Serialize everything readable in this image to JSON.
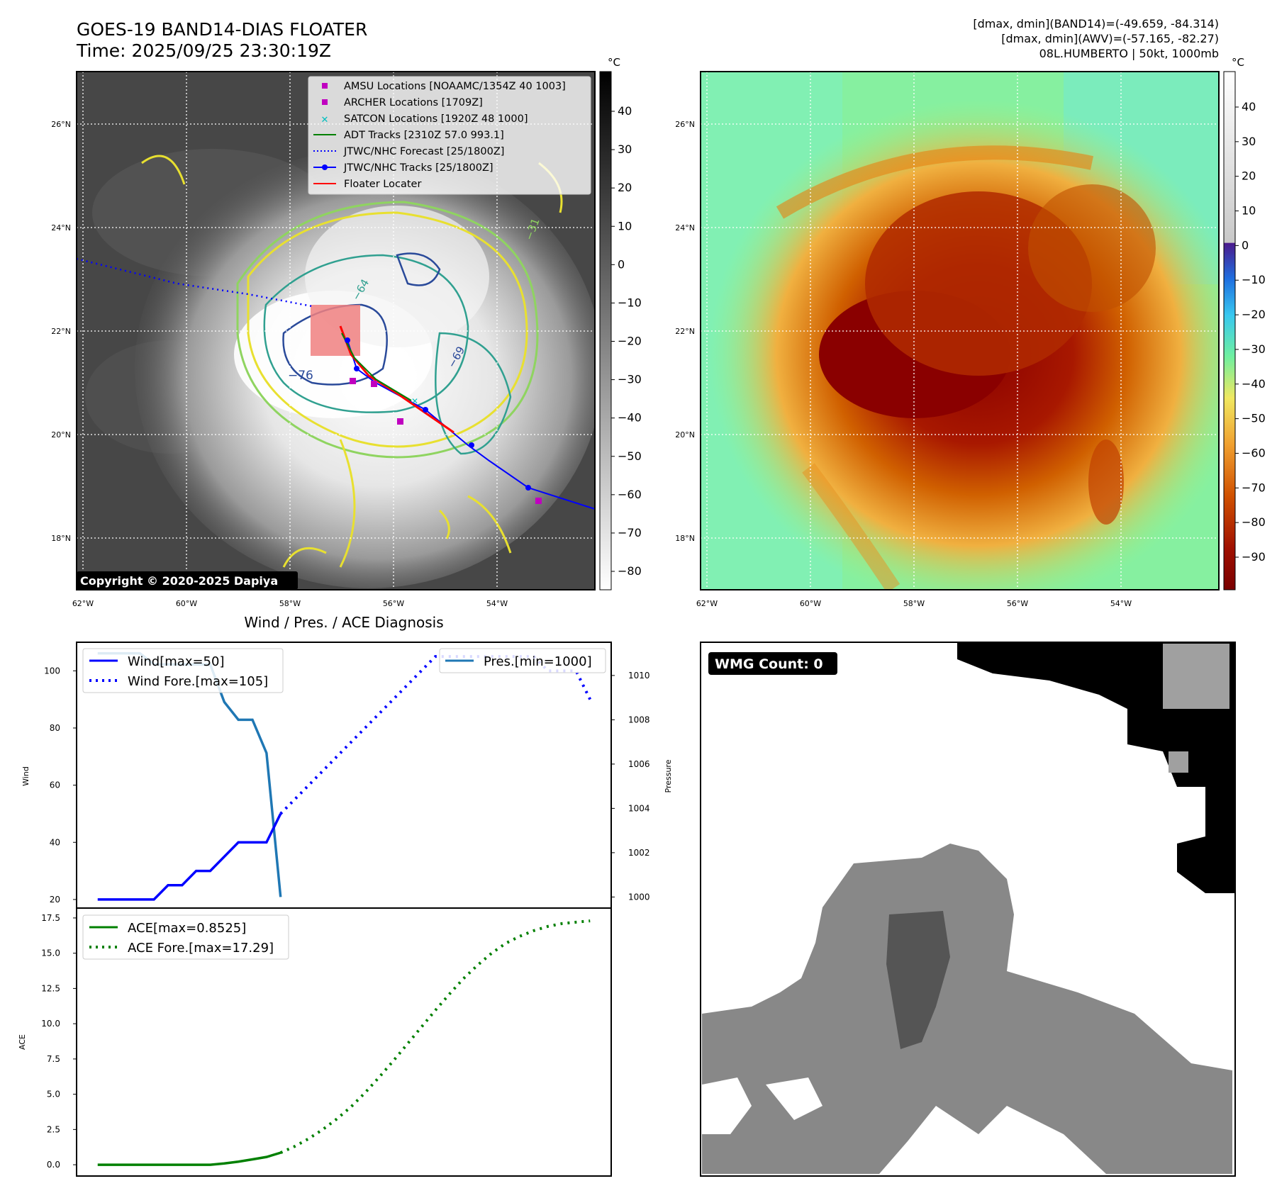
{
  "header": {
    "title": "GOES-19 BAND14-DIAS FLOATER",
    "time": "Time: 2025/09/25 23:30:19Z",
    "info_line1": "[dmax, dmin](BAND14)=(-49.659, -84.314)",
    "info_line2": "[dmax, dmin](AWV)=(-57.165, -82.27)",
    "info_line3": "08L.HUMBERTO | 50kt, 1000mb"
  },
  "copyright": "Copyright © 2020-2025 Dapiya",
  "colorbar_left": {
    "unit": "°C",
    "ticks": [
      "40",
      "30",
      "20",
      "10",
      "0",
      "−10",
      "−20",
      "−30",
      "−40",
      "−50",
      "−60",
      "−70",
      "−80"
    ]
  },
  "colorbar_right": {
    "unit": "°C",
    "ticks": [
      "40",
      "30",
      "20",
      "10",
      "0",
      "−10",
      "−20",
      "−30",
      "−40",
      "−50",
      "−60",
      "−70",
      "−80",
      "−90"
    ]
  },
  "map": {
    "lat_labels": [
      "26°N",
      "24°N",
      "22°N",
      "20°N",
      "18°N"
    ],
    "lon_labels": [
      "62°W",
      "60°W",
      "58°W",
      "56°W",
      "54°W"
    ],
    "contour_labels": [
      "−76",
      "−31",
      "−64",
      "−69"
    ],
    "legend": [
      {
        "label": "AMSU Locations [NOAAMC/1354Z 40 1003]",
        "icon": "square-marker",
        "color": "#c000c0"
      },
      {
        "label": "ARCHER Locations [1709Z]",
        "icon": "square-marker",
        "color": "#c000c0"
      },
      {
        "label": "SATCON Locations [1920Z 48 1000]",
        "icon": "x-marker",
        "color": "#00bfbf"
      },
      {
        "label": "ADT Tracks [2310Z 57.0 993.1]",
        "icon": "solid-line",
        "color": "#008000"
      },
      {
        "label": "JTWC/NHC Forecast [25/1800Z]",
        "icon": "dotted-line",
        "color": "#0000ff"
      },
      {
        "label": "JTWC/NHC Tracks [25/1800Z]",
        "icon": "line-dot",
        "color": "#0000ff"
      },
      {
        "label": "Floater Locater",
        "icon": "solid-line",
        "color": "#ff0000"
      }
    ]
  },
  "diagnosis": {
    "title": "Wind / Pres. / ACE Diagnosis",
    "wind_axis_label": "Wind",
    "pressure_axis_label": "Pressure",
    "ace_axis_label": "ACE",
    "wind_ticks": [
      "100",
      "80",
      "60",
      "40",
      "20"
    ],
    "pressure_ticks": [
      "1010",
      "1008",
      "1006",
      "1004",
      "1002",
      "1000"
    ],
    "ace_ticks": [
      "17.5",
      "15.0",
      "12.5",
      "10.0",
      "7.5",
      "5.0",
      "2.5",
      "0.0"
    ],
    "legend_wind": "Wind[max=50]",
    "legend_wind_fore": "Wind Fore.[max=105]",
    "legend_pres": "Pres.[min=1000]",
    "legend_ace": "ACE[max=0.8525]",
    "legend_ace_fore": "ACE Fore.[max=17.29]"
  },
  "wmg": {
    "label": "WMG Count: 0"
  },
  "colors": {
    "wind": "#0000ff",
    "pressure": "#1f77b4",
    "ace": "#008000",
    "floater": "#ff0000",
    "marker": "#c000c0"
  },
  "chart_data": [
    {
      "type": "line",
      "title": "Wind / Pres. / ACE Diagnosis",
      "ylabel": "Wind",
      "ylim": [
        17,
        110
      ],
      "series": [
        {
          "name": "Wind[max=50]",
          "x": [
            0,
            1,
            2,
            3,
            4,
            5,
            6,
            7,
            8,
            9,
            10,
            11,
            12,
            13
          ],
          "values": [
            20,
            20,
            20,
            20,
            20,
            25,
            25,
            30,
            30,
            35,
            40,
            40,
            40,
            50
          ]
        },
        {
          "name": "Wind Fore.[max=105]",
          "x": [
            13,
            14,
            15,
            16,
            17,
            18,
            19,
            20,
            21,
            22,
            23,
            24,
            25,
            26,
            27,
            28,
            29,
            30,
            31,
            32,
            33,
            34,
            35
          ],
          "values": [
            50,
            55,
            60,
            65,
            70,
            75,
            80,
            85,
            90,
            95,
            100,
            105,
            105,
            105,
            105,
            105,
            105,
            105,
            105,
            100,
            100,
            100,
            90
          ]
        }
      ]
    },
    {
      "type": "line",
      "ylabel": "Pressure",
      "ylim": [
        999.5,
        1011.5
      ],
      "series": [
        {
          "name": "Pres.[min=1000]",
          "x": [
            0,
            1,
            2,
            3,
            4,
            5,
            6,
            7,
            8,
            9,
            10,
            11,
            12,
            13
          ],
          "values": [
            1011,
            1011,
            1011,
            1011,
            1010.5,
            1010.5,
            1010.5,
            1010.5,
            1010.5,
            1008.8,
            1008,
            1008,
            1006.5,
            1000
          ]
        }
      ]
    },
    {
      "type": "line",
      "ylabel": "ACE",
      "ylim": [
        -0.8,
        18.2
      ],
      "series": [
        {
          "name": "ACE[max=0.8525]",
          "x": [
            0,
            1,
            2,
            3,
            4,
            5,
            6,
            7,
            8,
            9,
            10,
            11,
            12,
            13
          ],
          "values": [
            0,
            0,
            0,
            0,
            0,
            0,
            0,
            0,
            0,
            0.09,
            0.22,
            0.38,
            0.55,
            0.8525
          ]
        },
        {
          "name": "ACE Fore.[max=17.29]",
          "x": [
            13,
            14,
            15,
            16,
            17,
            18,
            19,
            20,
            21,
            22,
            23,
            24,
            25,
            26,
            27,
            28,
            29,
            30,
            31,
            32,
            33,
            34,
            35
          ],
          "values": [
            0.8525,
            1.3,
            1.85,
            2.5,
            3.25,
            4.1,
            5.1,
            6.2,
            7.35,
            8.55,
            9.75,
            10.95,
            12.1,
            13.2,
            14.15,
            15.0,
            15.7,
            16.2,
            16.6,
            16.9,
            17.1,
            17.2,
            17.29
          ]
        }
      ]
    }
  ]
}
